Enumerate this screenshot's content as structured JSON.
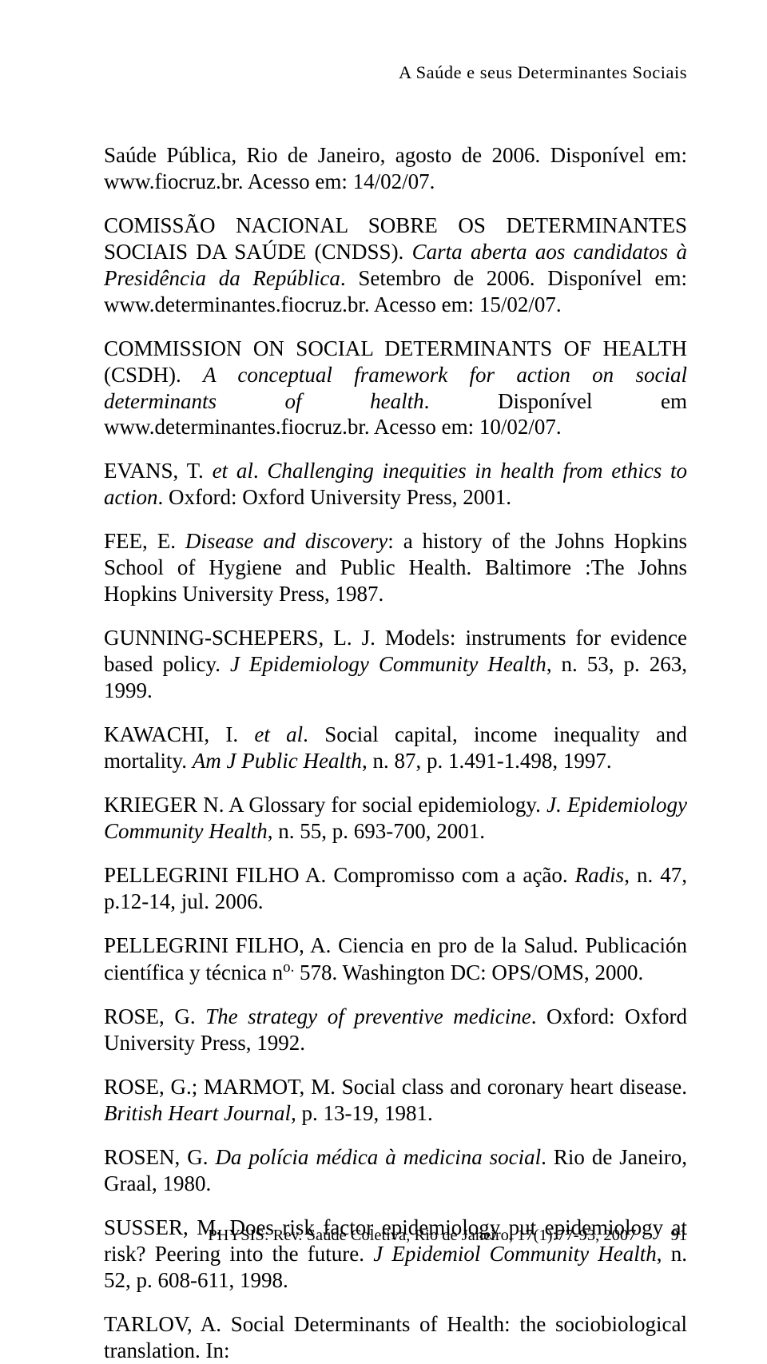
{
  "running_head": "A Saúde e seus Determinantes Sociais",
  "refs": {
    "r1a": "Saúde Pública, Rio de Janeiro, agosto de 2006. Disponível em: www.fiocruz.br. Acesso em: 14/02/07.",
    "r2a": "COMISSÃO NACIONAL SOBRE OS DETERMINANTES SOCIAIS DA SAÚDE (CNDSS). ",
    "r2b": "Carta aberta aos candidatos à Presidência da República",
    "r2c": ". Setembro de 2006. Disponível em: www.determinantes.fiocruz.br. Acesso em: 15/02/07.",
    "r3a": "COMMISSION ON SOCIAL DETERMINANTS OF HEALTH (CSDH). ",
    "r3b": "A conceptual framework for action on social determinants of health",
    "r3c": ". Disponível em www.determinantes.fiocruz.br. Acesso em: 10/02/07.",
    "r4a": "EVANS, T. ",
    "r4b": "et al",
    "r4c": ". ",
    "r4d": "Challenging inequities in health from ethics to action",
    "r4e": ". Oxford: Oxford University Press, 2001.",
    "r5a": "FEE, E. ",
    "r5b": "Disease and discovery",
    "r5c": ": a history of the Johns Hopkins School of Hygiene and Public Health. Baltimore :The Johns Hopkins University Press, 1987.",
    "r6a": "GUNNING-SCHEPERS, L. J. Models: instruments for evidence based policy. ",
    "r6b": "J Epidemiology Community Health",
    "r6c": ", n. 53, p. 263, 1999.",
    "r7a": "KAWACHI, I. ",
    "r7b": "et al",
    "r7c": ". Social capital, income inequality and mortality. ",
    "r7d": "Am J Public Health",
    "r7e": ", n. 87, p. 1.491-1.498, 1997.",
    "r8a": "KRIEGER N. A Glossary for social epidemiology. ",
    "r8b": "J. Epidemiology Community Health",
    "r8c": ", n. 55, p. 693-700, 2001.",
    "r9a": "PELLEGRINI FILHO A. Compromisso com a ação. ",
    "r9b": "Radis",
    "r9c": ", n. 47, p.12-14, jul. 2006.",
    "r10a": "PELLEGRINI FILHO, A. Ciencia en pro de la Salud. Publicación científica y técnica n",
    "r10sup": "o.",
    "r10b": " 578. Washington DC: OPS/OMS, 2000.",
    "r11a": "ROSE, G. ",
    "r11b": "The strategy of preventive medicine",
    "r11c": ". Oxford: Oxford University Press, 1992.",
    "r12a": "ROSE, G.; MARMOT, M. Social class and coronary heart disease. ",
    "r12b": "British Heart Journal,",
    "r12c": " p. 13-19, 1981.",
    "r13a": "ROSEN, G. ",
    "r13b": "Da polícia médica à medicina social",
    "r13c": ". Rio de Janeiro, Graal, 1980.",
    "r14a": "SUSSER, M. Does risk factor epidemiology put epidemiology at risk? Peering into the future. ",
    "r14b": "J Epidemiol Community Health",
    "r14c": ", n. 52, p. 608-611, 1998.",
    "r15a": "TARLOV, A. Social Determinants of Health: the sociobiological translation. In:"
  },
  "footer": {
    "journal": "PHYSIS: Rev. Saúde Coletiva, Rio de Janeiro, 17(1):77-93, 2007",
    "page": "91"
  }
}
